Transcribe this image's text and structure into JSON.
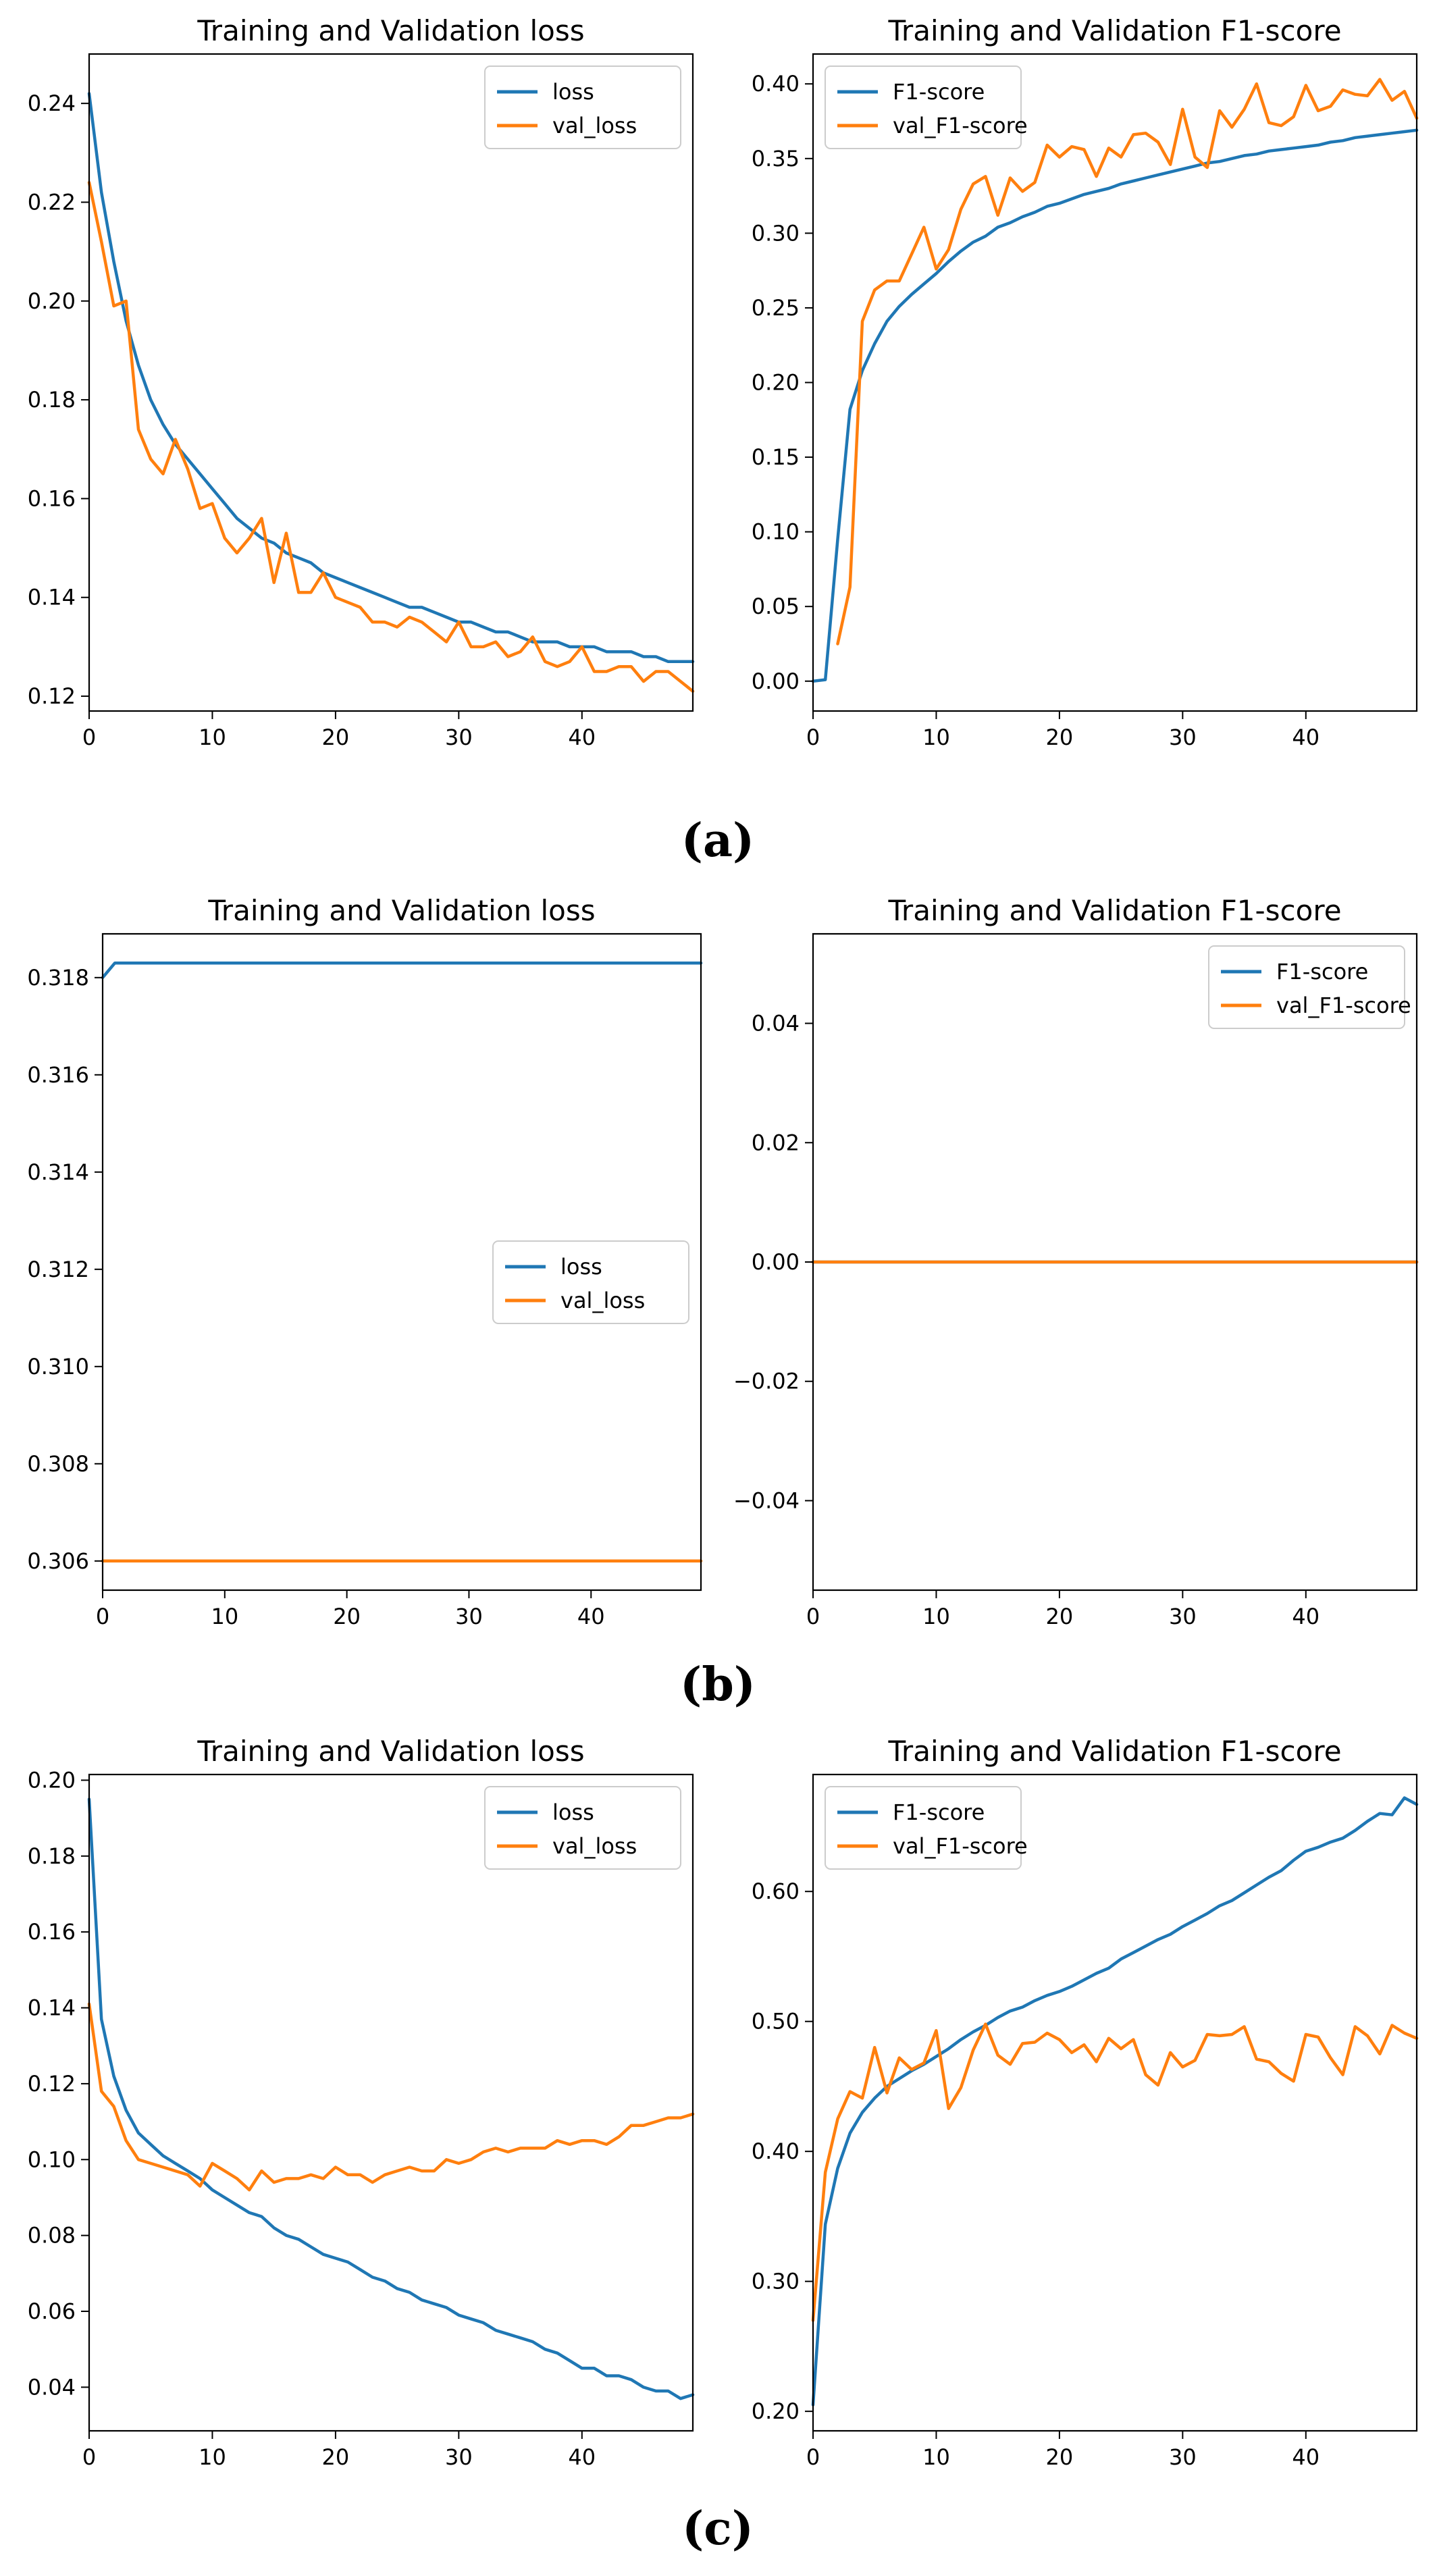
{
  "colors": {
    "loss": "#1f77b4",
    "val": "#ff7f0e",
    "axis": "#000000",
    "background": "#ffffff"
  },
  "panel_labels": [
    "(a)",
    "(b)",
    "(c)"
  ],
  "chart_data": [
    {
      "type": "line",
      "panel": "a",
      "title": "Training and Validation loss",
      "xlabel": "",
      "ylabel": "",
      "xlim": [
        0,
        49
      ],
      "ylim": [
        0.117,
        0.25
      ],
      "xticks": [
        0,
        10,
        20,
        30,
        40
      ],
      "yticks": [
        0.12,
        0.14,
        0.16,
        0.18,
        0.2,
        0.22,
        0.24
      ],
      "legend": "top-right",
      "grid": false,
      "series": [
        {
          "name": "loss",
          "color": "#1f77b4",
          "x0": 0,
          "values": [
            0.242,
            0.222,
            0.208,
            0.196,
            0.187,
            0.18,
            0.175,
            0.171,
            0.168,
            0.165,
            0.162,
            0.159,
            0.156,
            0.154,
            0.152,
            0.151,
            0.149,
            0.148,
            0.147,
            0.145,
            0.144,
            0.143,
            0.142,
            0.141,
            0.14,
            0.139,
            0.138,
            0.138,
            0.137,
            0.136,
            0.135,
            0.135,
            0.134,
            0.133,
            0.133,
            0.132,
            0.131,
            0.131,
            0.131,
            0.13,
            0.13,
            0.13,
            0.129,
            0.129,
            0.129,
            0.128,
            0.128,
            0.127,
            0.127,
            0.127
          ]
        },
        {
          "name": "val_loss",
          "color": "#ff7f0e",
          "x0": 0,
          "values": [
            0.224,
            0.212,
            0.199,
            0.2,
            0.174,
            0.168,
            0.165,
            0.172,
            0.166,
            0.158,
            0.159,
            0.152,
            0.149,
            0.152,
            0.156,
            0.143,
            0.153,
            0.141,
            0.141,
            0.145,
            0.14,
            0.139,
            0.138,
            0.135,
            0.135,
            0.134,
            0.136,
            0.135,
            0.133,
            0.131,
            0.135,
            0.13,
            0.13,
            0.131,
            0.128,
            0.129,
            0.132,
            0.127,
            0.126,
            0.127,
            0.13,
            0.125,
            0.125,
            0.126,
            0.126,
            0.123,
            0.125,
            0.125,
            0.123,
            0.121
          ]
        }
      ]
    },
    {
      "type": "line",
      "panel": "a",
      "title": "Training and Validation F1-score",
      "xlabel": "",
      "ylabel": "",
      "xlim": [
        0,
        49
      ],
      "ylim": [
        -0.02,
        0.42
      ],
      "xticks": [
        0,
        10,
        20,
        30,
        40
      ],
      "yticks": [
        0.0,
        0.05,
        0.1,
        0.15,
        0.2,
        0.25,
        0.3,
        0.35,
        0.4
      ],
      "legend": "top-left",
      "grid": false,
      "series": [
        {
          "name": "F1-score",
          "color": "#1f77b4",
          "x0": 0,
          "values": [
            0.0,
            0.001,
            0.095,
            0.182,
            0.208,
            0.226,
            0.241,
            0.251,
            0.259,
            0.266,
            0.273,
            0.281,
            0.288,
            0.294,
            0.298,
            0.304,
            0.307,
            0.311,
            0.314,
            0.318,
            0.32,
            0.323,
            0.326,
            0.328,
            0.33,
            0.333,
            0.335,
            0.337,
            0.339,
            0.341,
            0.343,
            0.345,
            0.347,
            0.348,
            0.35,
            0.352,
            0.353,
            0.355,
            0.356,
            0.357,
            0.358,
            0.359,
            0.361,
            0.362,
            0.364,
            0.365,
            0.366,
            0.367,
            0.368,
            0.369
          ]
        },
        {
          "name": "val_F1-score",
          "color": "#ff7f0e",
          "x0": 2,
          "values": [
            0.025,
            0.063,
            0.241,
            0.262,
            0.268,
            0.268,
            0.286,
            0.304,
            0.276,
            0.289,
            0.316,
            0.333,
            0.338,
            0.312,
            0.337,
            0.328,
            0.334,
            0.359,
            0.351,
            0.358,
            0.356,
            0.338,
            0.357,
            0.351,
            0.366,
            0.367,
            0.361,
            0.346,
            0.383,
            0.351,
            0.344,
            0.382,
            0.371,
            0.383,
            0.4,
            0.374,
            0.372,
            0.378,
            0.399,
            0.382,
            0.385,
            0.396,
            0.393,
            0.392,
            0.403,
            0.389,
            0.395,
            0.377
          ]
        }
      ]
    },
    {
      "type": "line",
      "panel": "b",
      "title": "Training and Validation loss",
      "xlabel": "",
      "ylabel": "",
      "xlim": [
        0,
        49
      ],
      "ylim": [
        0.3054,
        0.3189
      ],
      "xticks": [
        0,
        10,
        20,
        30,
        40
      ],
      "yticks": [
        0.306,
        0.308,
        0.31,
        0.312,
        0.314,
        0.316,
        0.318
      ],
      "legend": "center-right",
      "grid": false,
      "series": [
        {
          "name": "loss",
          "color": "#1f77b4",
          "x0": 0,
          "values": [
            0.318,
            0.3183,
            0.3183,
            0.3183,
            0.3183,
            0.3183,
            0.3183,
            0.3183,
            0.3183,
            0.3183,
            0.3183,
            0.3183,
            0.3183,
            0.3183,
            0.3183,
            0.3183,
            0.3183,
            0.3183,
            0.3183,
            0.3183,
            0.3183,
            0.3183,
            0.3183,
            0.3183,
            0.3183,
            0.3183,
            0.3183,
            0.3183,
            0.3183,
            0.3183,
            0.3183,
            0.3183,
            0.3183,
            0.3183,
            0.3183,
            0.3183,
            0.3183,
            0.3183,
            0.3183,
            0.3183,
            0.3183,
            0.3183,
            0.3183,
            0.3183,
            0.3183,
            0.3183,
            0.3183,
            0.3183,
            0.3183,
            0.3183
          ]
        },
        {
          "name": "val_loss",
          "color": "#ff7f0e",
          "x0": 0,
          "values": [
            0.306,
            0.306,
            0.306,
            0.306,
            0.306,
            0.306,
            0.306,
            0.306,
            0.306,
            0.306,
            0.306,
            0.306,
            0.306,
            0.306,
            0.306,
            0.306,
            0.306,
            0.306,
            0.306,
            0.306,
            0.306,
            0.306,
            0.306,
            0.306,
            0.306,
            0.306,
            0.306,
            0.306,
            0.306,
            0.306,
            0.306,
            0.306,
            0.306,
            0.306,
            0.306,
            0.306,
            0.306,
            0.306,
            0.306,
            0.306,
            0.306,
            0.306,
            0.306,
            0.306,
            0.306,
            0.306,
            0.306,
            0.306,
            0.306,
            0.306
          ]
        }
      ]
    },
    {
      "type": "line",
      "panel": "b",
      "title": "Training and Validation F1-score",
      "xlabel": "",
      "ylabel": "",
      "xlim": [
        0,
        49
      ],
      "ylim": [
        -0.055,
        0.055
      ],
      "xticks": [
        0,
        10,
        20,
        30,
        40
      ],
      "yticks": [
        -0.04,
        -0.02,
        0.0,
        0.02,
        0.04
      ],
      "legend": "top-right",
      "grid": false,
      "series": [
        {
          "name": "F1-score",
          "color": "#1f77b4",
          "x0": 0,
          "values": [
            0,
            0,
            0,
            0,
            0,
            0,
            0,
            0,
            0,
            0,
            0,
            0,
            0,
            0,
            0,
            0,
            0,
            0,
            0,
            0,
            0,
            0,
            0,
            0,
            0,
            0,
            0,
            0,
            0,
            0,
            0,
            0,
            0,
            0,
            0,
            0,
            0,
            0,
            0,
            0,
            0,
            0,
            0,
            0,
            0,
            0,
            0,
            0,
            0,
            0
          ]
        },
        {
          "name": "val_F1-score",
          "color": "#ff7f0e",
          "x0": 0,
          "values": [
            0,
            0,
            0,
            0,
            0,
            0,
            0,
            0,
            0,
            0,
            0,
            0,
            0,
            0,
            0,
            0,
            0,
            0,
            0,
            0,
            0,
            0,
            0,
            0,
            0,
            0,
            0,
            0,
            0,
            0,
            0,
            0,
            0,
            0,
            0,
            0,
            0,
            0,
            0,
            0,
            0,
            0,
            0,
            0,
            0,
            0,
            0,
            0,
            0,
            0
          ]
        }
      ]
    },
    {
      "type": "line",
      "panel": "c",
      "title": "Training and Validation loss",
      "xlabel": "",
      "ylabel": "",
      "xlim": [
        0,
        49
      ],
      "ylim": [
        0.0285,
        0.2015
      ],
      "xticks": [
        0,
        10,
        20,
        30,
        40
      ],
      "yticks": [
        0.04,
        0.06,
        0.08,
        0.1,
        0.12,
        0.14,
        0.16,
        0.18,
        0.2
      ],
      "legend": "top-right",
      "grid": false,
      "series": [
        {
          "name": "loss",
          "color": "#1f77b4",
          "x0": 0,
          "values": [
            0.195,
            0.137,
            0.122,
            0.113,
            0.107,
            0.104,
            0.101,
            0.099,
            0.097,
            0.095,
            0.092,
            0.09,
            0.088,
            0.086,
            0.085,
            0.082,
            0.08,
            0.079,
            0.077,
            0.075,
            0.074,
            0.073,
            0.071,
            0.069,
            0.068,
            0.066,
            0.065,
            0.063,
            0.062,
            0.061,
            0.059,
            0.058,
            0.057,
            0.055,
            0.054,
            0.053,
            0.052,
            0.05,
            0.049,
            0.047,
            0.045,
            0.045,
            0.043,
            0.043,
            0.042,
            0.04,
            0.039,
            0.039,
            0.037,
            0.038
          ]
        },
        {
          "name": "val_loss",
          "color": "#ff7f0e",
          "x0": 0,
          "values": [
            0.141,
            0.118,
            0.114,
            0.105,
            0.1,
            0.099,
            0.098,
            0.097,
            0.096,
            0.093,
            0.099,
            0.097,
            0.095,
            0.092,
            0.097,
            0.094,
            0.095,
            0.095,
            0.096,
            0.095,
            0.098,
            0.096,
            0.096,
            0.094,
            0.096,
            0.097,
            0.098,
            0.097,
            0.097,
            0.1,
            0.099,
            0.1,
            0.102,
            0.103,
            0.102,
            0.103,
            0.103,
            0.103,
            0.105,
            0.104,
            0.105,
            0.105,
            0.104,
            0.106,
            0.109,
            0.109,
            0.11,
            0.111,
            0.111,
            0.112
          ]
        }
      ]
    },
    {
      "type": "line",
      "panel": "c",
      "title": "Training and Validation F1-score",
      "xlabel": "",
      "ylabel": "",
      "xlim": [
        0,
        49
      ],
      "ylim": [
        0.185,
        0.69
      ],
      "xticks": [
        0,
        10,
        20,
        30,
        40
      ],
      "yticks": [
        0.2,
        0.3,
        0.4,
        0.5,
        0.6
      ],
      "legend": "top-left",
      "grid": false,
      "series": [
        {
          "name": "F1-score",
          "color": "#1f77b4",
          "x0": 0,
          "values": [
            0.205,
            0.344,
            0.387,
            0.414,
            0.43,
            0.441,
            0.45,
            0.456,
            0.462,
            0.467,
            0.473,
            0.479,
            0.486,
            0.492,
            0.497,
            0.503,
            0.508,
            0.511,
            0.516,
            0.52,
            0.523,
            0.527,
            0.532,
            0.537,
            0.541,
            0.548,
            0.553,
            0.558,
            0.563,
            0.567,
            0.573,
            0.578,
            0.583,
            0.589,
            0.593,
            0.599,
            0.605,
            0.611,
            0.616,
            0.624,
            0.631,
            0.634,
            0.638,
            0.641,
            0.647,
            0.654,
            0.66,
            0.659,
            0.672,
            0.667
          ]
        },
        {
          "name": "val_F1-score",
          "color": "#ff7f0e",
          "x0": 0,
          "values": [
            0.27,
            0.384,
            0.425,
            0.446,
            0.441,
            0.48,
            0.445,
            0.472,
            0.463,
            0.468,
            0.493,
            0.433,
            0.449,
            0.478,
            0.498,
            0.474,
            0.467,
            0.483,
            0.484,
            0.491,
            0.486,
            0.476,
            0.482,
            0.469,
            0.487,
            0.479,
            0.486,
            0.459,
            0.451,
            0.476,
            0.465,
            0.47,
            0.49,
            0.489,
            0.49,
            0.496,
            0.471,
            0.469,
            0.46,
            0.454,
            0.49,
            0.488,
            0.472,
            0.459,
            0.496,
            0.489,
            0.475,
            0.497,
            0.491,
            0.487
          ]
        }
      ]
    }
  ]
}
